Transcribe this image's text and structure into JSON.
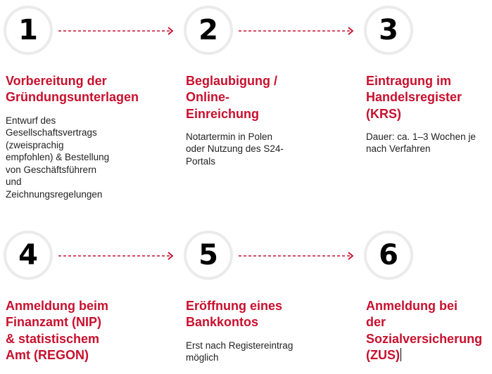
{
  "accent_color": "#c8102e",
  "steps": [
    {
      "number": "1",
      "title": [
        "Vorbereitung der",
        "Gründungsunterlagen"
      ],
      "description": [
        "Entwurf des",
        "Gesellschaftsvertrags",
        "(zweisprachig",
        "empfohlen) & Bestellung",
        "von Geschäftsführern",
        "und",
        "Zeichnungsregelungen"
      ]
    },
    {
      "number": "2",
      "title": [
        "Beglaubigung /",
        "Online-",
        "Einreichung"
      ],
      "description": [
        "Notartermin in Polen",
        "oder Nutzung des S24-",
        "Portals"
      ]
    },
    {
      "number": "3",
      "title": [
        "Eintragung im",
        "Handelsregister",
        "(KRS)"
      ],
      "description": [
        "Dauer: ca. 1–3 Wochen je",
        "nach Verfahren"
      ]
    },
    {
      "number": "4",
      "title": [
        "Anmeldung beim",
        "Finanzamt (NIP)",
        "& statistischem",
        "Amt (REGON)"
      ],
      "description": []
    },
    {
      "number": "5",
      "title": [
        "Eröffnung eines",
        "Bankkontos"
      ],
      "description": [
        "Erst nach Registereintrag",
        "möglich"
      ]
    },
    {
      "number": "6",
      "title": [
        "Anmeldung bei",
        "der",
        "Sozialversicherung",
        "(ZUS)"
      ],
      "description": []
    }
  ]
}
